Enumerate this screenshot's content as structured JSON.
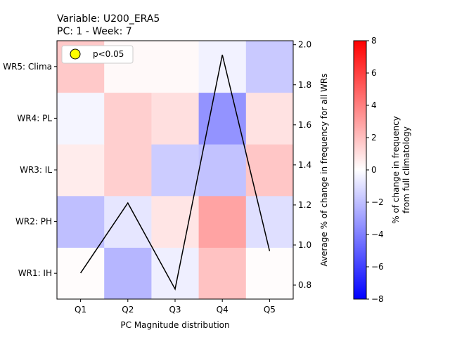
{
  "chart_data": {
    "type": "heatmap",
    "title": [
      "Variable: U200_ERA5",
      "PC: 1 - Week: 7"
    ],
    "xlabel": "PC Magnitude distribution",
    "categories_x": [
      "Q1",
      "Q2",
      "Q3",
      "Q4",
      "Q5"
    ],
    "categories_y": [
      "WR1: IH",
      "WR2: PH",
      "WR3: IL",
      "WR4: PL",
      "WR5: Clima"
    ],
    "values": [
      [
        0.1,
        -2.3,
        -0.5,
        1.9,
        0.1
      ],
      [
        -2.0,
        -0.8,
        0.8,
        2.9,
        -1.0
      ],
      [
        0.6,
        1.5,
        -1.6,
        -1.9,
        1.8
      ],
      [
        -0.3,
        1.5,
        1.0,
        -3.4,
        0.9
      ],
      [
        1.7,
        0.2,
        0.2,
        -0.4,
        -1.7
      ]
    ],
    "colorbar": {
      "label": [
        "% of change in frequency",
        "from full climatology"
      ],
      "range": [
        -8,
        8
      ],
      "ticks": [
        "-8",
        "-6",
        "-4",
        "-2",
        "0",
        "2",
        "4",
        "6",
        "8"
      ],
      "colormap": "bwr"
    },
    "line_series": {
      "ylabel": "Average % of change in frequency for all WRs",
      "color": "#000000",
      "x": [
        "Q1",
        "Q2",
        "Q3",
        "Q4",
        "Q5"
      ],
      "y": [
        0.86,
        1.21,
        0.78,
        1.95,
        0.97
      ],
      "ylim": [
        0.73,
        2.02
      ],
      "ticks": [
        "0.8",
        "1.0",
        "1.2",
        "1.4",
        "1.6",
        "1.8",
        "2.0"
      ]
    },
    "legend": {
      "label": "p<0.05",
      "marker_color": "#ffff00",
      "position": "top-left"
    }
  }
}
